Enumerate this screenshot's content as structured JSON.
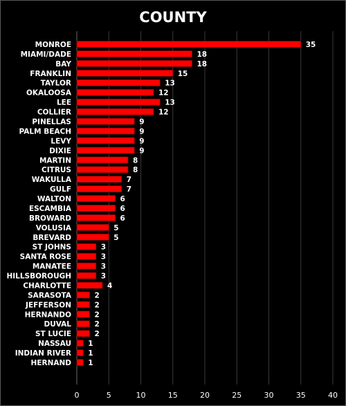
{
  "chart_data": {
    "type": "bar",
    "orientation": "horizontal",
    "title": "COUNTY",
    "categories": [
      "MONROE",
      "MIAMI/DADE",
      "BAY",
      "FRANKLIN",
      "TAYLOR",
      "OKALOOSA",
      "LEE",
      "COLLIER",
      "PINELLAS",
      "PALM BEACH",
      "LEVY",
      "DIXIE",
      "MARTIN",
      "CITRUS",
      "WAKULLA",
      "GULF",
      "WALTON",
      "ESCAMBIA",
      "BROWARD",
      "VOLUSIA",
      "BREVARD",
      "ST JOHNS",
      "SANTA ROSE",
      "MANATEE",
      "HILLSBOROUGH",
      "CHARLOTTE",
      "SARASOTA",
      "JEFFERSON",
      "HERNANDO",
      "DUVAL",
      "ST LUCIE",
      "NASSAU",
      "INDIAN RIVER",
      "HERNAND"
    ],
    "values": [
      35,
      18,
      18,
      15,
      13,
      12,
      13,
      12,
      9,
      9,
      9,
      9,
      8,
      8,
      7,
      7,
      6,
      6,
      6,
      5,
      5,
      3,
      3,
      3,
      3,
      4,
      2,
      2,
      2,
      2,
      2,
      1,
      1,
      1
    ],
    "xlim": [
      0,
      40
    ],
    "xticks": [
      "0",
      "5",
      "10",
      "15",
      "20",
      "25",
      "30",
      "35",
      "40"
    ],
    "grid": true,
    "data_labels": true,
    "colors": {
      "bar": "#ff0000",
      "bar_edge": "#8b0000",
      "background": "#000000",
      "grid": "#3a3a3a",
      "text": "#ffffff"
    }
  }
}
